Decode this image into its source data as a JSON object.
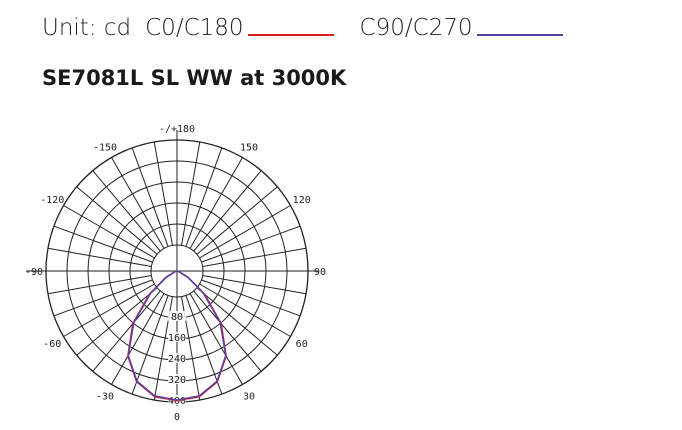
{
  "legend": {
    "unit_label": "Unit: cd",
    "series_a_label": "C0/C180",
    "series_b_label": "C90/C270",
    "series_a_color": "#e02020",
    "series_b_color": "#5a3fa0"
  },
  "title": "SE7081L SL WW at 3000K",
  "chart_data": {
    "type": "polar",
    "angle_labels": [
      {
        "angle": 180,
        "text": "-/+180"
      },
      {
        "angle": 150,
        "text": "150"
      },
      {
        "angle": -150,
        "text": "-150"
      },
      {
        "angle": 120,
        "text": "120"
      },
      {
        "angle": -120,
        "text": "-120"
      },
      {
        "angle": 90,
        "text": "90"
      },
      {
        "angle": -90,
        "text": "-90"
      },
      {
        "angle": 60,
        "text": "60"
      },
      {
        "angle": -60,
        "text": "-60"
      },
      {
        "angle": 30,
        "text": "30"
      },
      {
        "angle": -30,
        "text": "-30"
      },
      {
        "angle": 0,
        "text": "0"
      }
    ],
    "radial_ticks": [
      "80",
      "160",
      "240",
      "320",
      "400"
    ],
    "rmax": 400,
    "series": [
      {
        "name": "C0/C180",
        "angles": [
          -90,
          -75,
          -60,
          -50,
          -40,
          -30,
          -20,
          -10,
          0,
          10,
          20,
          30,
          40,
          50,
          60,
          75,
          90
        ],
        "values": [
          0,
          5,
          40,
          110,
          210,
          300,
          360,
          390,
          395,
          390,
          360,
          300,
          210,
          110,
          40,
          5,
          0
        ]
      },
      {
        "name": "C90/C270",
        "angles": [
          -90,
          -75,
          -60,
          -50,
          -40,
          -30,
          -20,
          -10,
          0,
          10,
          20,
          30,
          40,
          50,
          60,
          75,
          90
        ],
        "values": [
          0,
          5,
          38,
          105,
          205,
          298,
          358,
          388,
          394,
          388,
          358,
          298,
          205,
          105,
          38,
          5,
          0
        ]
      }
    ]
  }
}
